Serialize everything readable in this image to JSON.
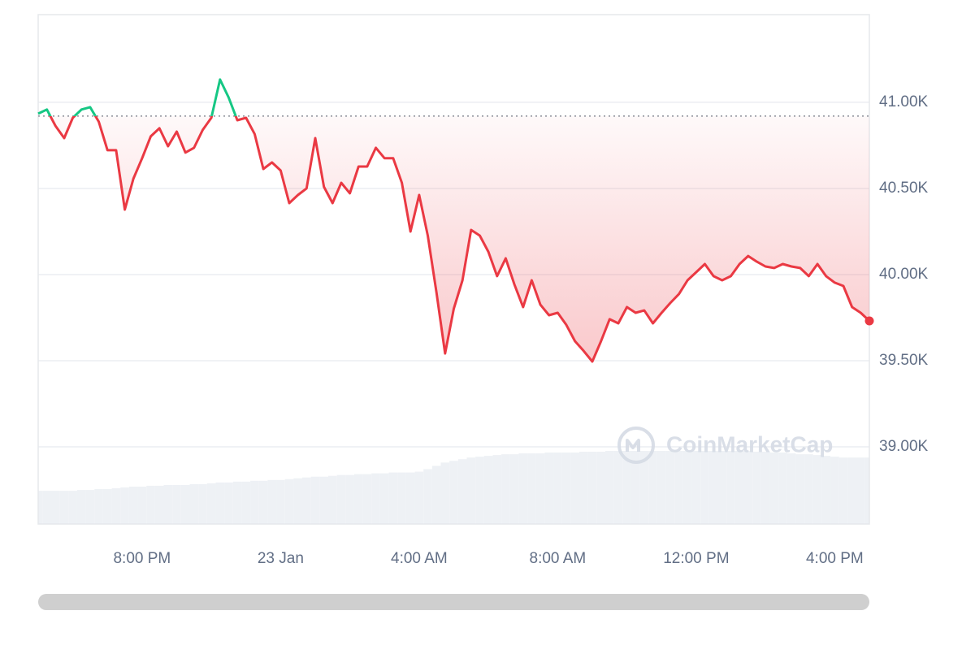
{
  "chart_data": {
    "type": "line",
    "watermark": "CoinMarketCap",
    "categories": [
      null,
      null,
      null,
      null,
      null,
      null,
      null,
      null,
      null,
      null,
      null,
      null,
      "8:00 PM",
      null,
      null,
      null,
      null,
      null,
      null,
      null,
      null,
      null,
      null,
      null,
      null,
      null,
      null,
      null,
      "23 Jan",
      null,
      null,
      null,
      null,
      null,
      null,
      null,
      null,
      null,
      null,
      null,
      null,
      null,
      null,
      null,
      "4:00 AM",
      null,
      null,
      null,
      null,
      null,
      null,
      null,
      null,
      null,
      null,
      null,
      null,
      null,
      null,
      null,
      "8:00 AM",
      null,
      null,
      null,
      null,
      null,
      null,
      null,
      null,
      null,
      null,
      null,
      null,
      null,
      null,
      null,
      "12:00 PM",
      null,
      null,
      null,
      null,
      null,
      null,
      null,
      null,
      null,
      null,
      null,
      null,
      null,
      null,
      null,
      "4:00 PM",
      null,
      null,
      null,
      null
    ],
    "series": [
      {
        "name": "Price",
        "color": "#ea3943",
        "up_color": "#16c784",
        "values": [
          40934,
          40958,
          40863,
          40792,
          40910,
          40958,
          40972,
          40887,
          40722,
          40722,
          40377,
          40557,
          40675,
          40802,
          40849,
          40745,
          40830,
          40708,
          40736,
          40840,
          40910,
          41132,
          41028,
          40896,
          40910,
          40816,
          40613,
          40651,
          40604,
          40415,
          40462,
          40500,
          40792,
          40509,
          40415,
          40533,
          40472,
          40627,
          40627,
          40736,
          40675,
          40675,
          40533,
          40250,
          40462,
          40226,
          39896,
          39542,
          39802,
          39967,
          40259,
          40226,
          40132,
          39991,
          40094,
          39943,
          39811,
          39967,
          39825,
          39764,
          39778,
          39708,
          39613,
          39557,
          39495,
          39613,
          39741,
          39717,
          39811,
          39778,
          39792,
          39717,
          39778,
          39835,
          39887,
          39967,
          40014,
          40061,
          39991,
          39967,
          39991,
          40061,
          40108,
          40075,
          40047,
          40038,
          40061,
          40047,
          40038,
          39991,
          40061,
          39991,
          39953,
          39934,
          39811,
          39778,
          39731
        ]
      },
      {
        "name": "Volume",
        "color": "#eef1f5",
        "values": [
          40,
          40,
          40,
          40,
          40,
          41,
          41,
          42,
          42,
          43,
          44,
          45,
          45,
          46,
          46,
          47,
          47,
          47,
          48,
          48,
          49,
          50,
          50,
          51,
          51,
          52,
          52,
          53,
          53,
          54,
          55,
          56,
          57,
          57,
          58,
          59,
          59,
          60,
          60,
          61,
          61,
          62,
          62,
          62,
          63,
          66,
          70,
          74,
          76,
          78,
          80,
          81,
          82,
          83,
          84,
          84,
          85,
          85,
          85,
          86,
          86,
          86,
          86,
          87,
          87,
          87,
          88,
          88,
          88,
          88,
          88,
          88,
          88,
          88,
          88,
          88,
          88,
          88,
          88,
          88,
          88,
          88,
          88,
          87,
          87,
          86,
          86,
          85,
          84,
          84,
          83,
          82,
          81,
          80,
          80,
          80,
          80
        ]
      }
    ],
    "reference": 40920,
    "ylim": [
      38552,
      41509
    ],
    "yticks": [
      {
        "value": 39000,
        "label": "39.00K"
      },
      {
        "value": 39500,
        "label": "39.50K"
      },
      {
        "value": 40000,
        "label": "40.00K"
      },
      {
        "value": 40500,
        "label": "40.50K"
      },
      {
        "value": 41000,
        "label": "41.00K"
      }
    ],
    "grid": true
  }
}
